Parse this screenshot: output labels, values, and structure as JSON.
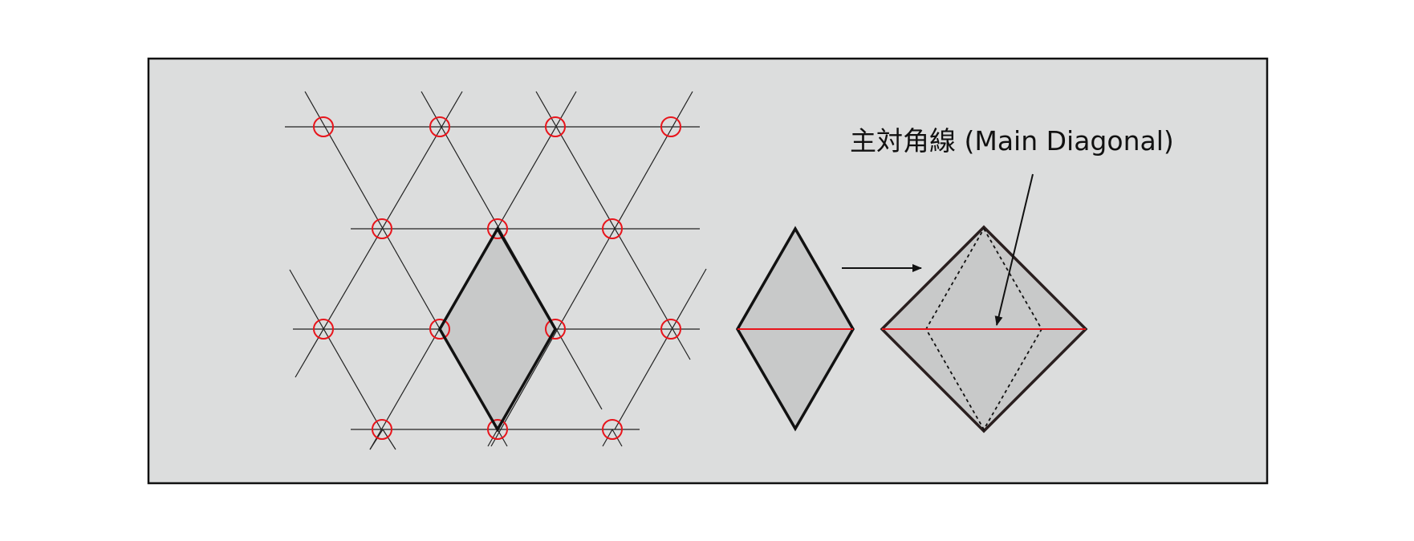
{
  "annotation": {
    "text": "主対角線 (Main Diagonal)"
  },
  "colors": {
    "panel_fill": "#dcdddd",
    "panel_border": "#111111",
    "shape_fill": "#c8c9c9",
    "lattice_line": "#222222",
    "lattice_point": "#e8141b",
    "diagonal": "#e8141b",
    "square_outline": "#2a1f1f"
  },
  "icons": {
    "lattice_point": "red-circle-icon",
    "transform_arrow": "arrow-right-icon",
    "pointer_arrow": "arrow-down-icon"
  }
}
